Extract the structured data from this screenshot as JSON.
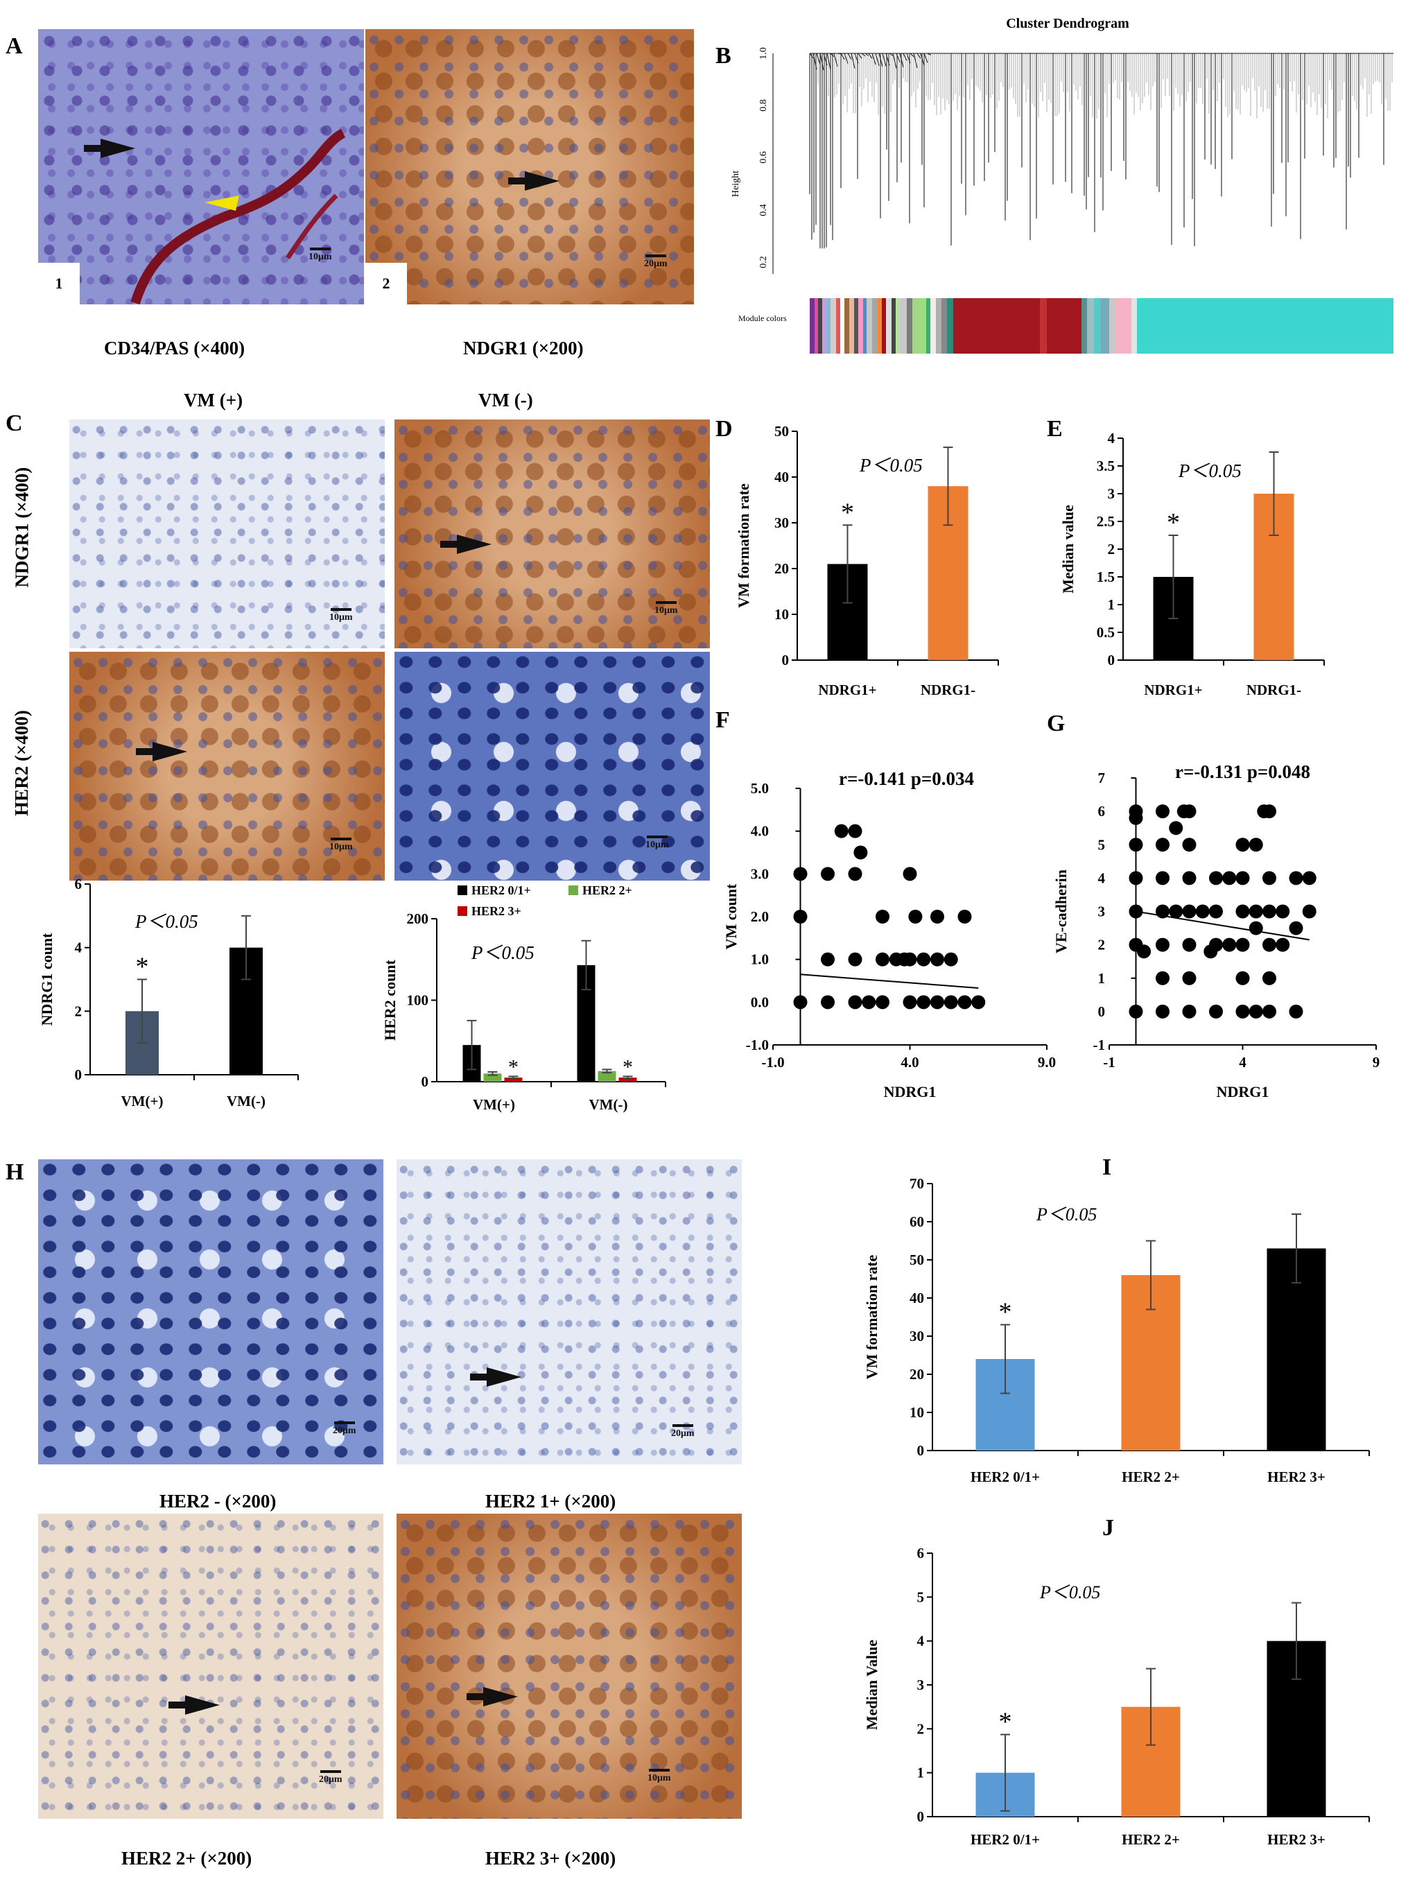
{
  "panels": {
    "A": {
      "label": "A",
      "captions": [
        "CD34/PAS (×400)",
        "NDGR1 (×200)"
      ],
      "num1": "1",
      "num2": "2",
      "scale1": "10μm",
      "scale2": "20μm"
    },
    "B": {
      "label": "B",
      "title": "Cluster Dendrogram",
      "ylabel": "Height",
      "yticks": [
        "1.0",
        "0.8",
        "0.6",
        "0.4",
        "0.2"
      ],
      "module_label": "Module colors"
    },
    "C": {
      "label": "C",
      "col_headers": [
        "VM (+)",
        "VM (-)"
      ],
      "row_labels": [
        "NDGR1 (×400)",
        "HER2 (×400)"
      ],
      "scale": "10μm"
    },
    "D": {
      "label": "D"
    },
    "E": {
      "label": "E"
    },
    "F": {
      "label": "F"
    },
    "G": {
      "label": "G"
    },
    "H": {
      "label": "H",
      "captions": [
        "HER2 - (×200)",
        "HER2 1+ (×200)",
        "HER2 2+ (×200)",
        "HER2 3+ (×200)"
      ],
      "scale": "20μm",
      "scale_3plus": "10μm"
    },
    "I": {
      "label": "I"
    },
    "J": {
      "label": "J"
    }
  },
  "chart_data": [
    {
      "id": "D",
      "type": "bar",
      "categories": [
        "NDRG1+",
        "NDRG1-"
      ],
      "values": [
        21,
        38
      ],
      "errors": [
        8.5,
        8.5
      ],
      "colors": [
        "#000000",
        "#ed7d31"
      ],
      "ylabel": "VM formation rate",
      "ylim": [
        0,
        50
      ],
      "yticks": [
        0,
        10,
        20,
        30,
        40,
        50
      ],
      "annotation": "P＜0.05",
      "star": "*"
    },
    {
      "id": "E",
      "type": "bar",
      "categories": [
        "NDRG1+",
        "NDRG1-"
      ],
      "values": [
        1.5,
        3.0
      ],
      "errors": [
        0.75,
        0.75
      ],
      "colors": [
        "#000000",
        "#ed7d31"
      ],
      "ylabel": "Median value",
      "ylim": [
        0,
        4
      ],
      "yticks": [
        0,
        0.5,
        1,
        1.5,
        2,
        2.5,
        3,
        3.5,
        4
      ],
      "annotation": "P＜0.05",
      "star": "*"
    },
    {
      "id": "C-left",
      "type": "bar",
      "categories": [
        "VM(+)",
        "VM(-)"
      ],
      "values": [
        2,
        4
      ],
      "errors": [
        1,
        1
      ],
      "colors": [
        "#44546a",
        "#000000"
      ],
      "ylabel": "NDRG1 count",
      "ylim": [
        0,
        6
      ],
      "yticks": [
        0,
        2,
        4,
        6
      ],
      "annotation": "P＜0.05",
      "star": "*"
    },
    {
      "id": "C-right",
      "type": "bar",
      "categories": [
        "VM(+)",
        "VM(-)"
      ],
      "series": [
        {
          "name": "HER2 0/1+",
          "color": "#000000",
          "values": [
            45,
            143
          ],
          "errors": [
            30,
            30
          ]
        },
        {
          "name": "HER2 2+",
          "color": "#70ad47",
          "values": [
            10,
            13
          ],
          "errors": [
            2,
            2
          ]
        },
        {
          "name": "HER2 3+",
          "color": "#c00000",
          "values": [
            5,
            5
          ],
          "errors": [
            1.5,
            1.5
          ]
        }
      ],
      "ylabel": "HER2 count",
      "ylim": [
        0,
        200
      ],
      "yticks": [
        0,
        100,
        200
      ],
      "annotation": "P＜0.05",
      "star": "*"
    },
    {
      "id": "F",
      "type": "scatter",
      "xlabel": "NDRG1",
      "ylabel": "VM count",
      "xlim": [
        -1,
        9
      ],
      "ylim": [
        -1,
        5
      ],
      "xticks": [
        "-1.0",
        "4.0",
        "9.0"
      ],
      "yticks": [
        "-1.0",
        "0.0",
        "1.0",
        "2.0",
        "3.0",
        "4.0",
        "5.0"
      ],
      "annotation": "r=-0.141  p=0.034",
      "trendline": [
        [
          0,
          0.65
        ],
        [
          6.5,
          0.33
        ]
      ],
      "points": [
        [
          0,
          0
        ],
        [
          0,
          2
        ],
        [
          0,
          3
        ],
        [
          1,
          0
        ],
        [
          1,
          1
        ],
        [
          1,
          3
        ],
        [
          1.5,
          4
        ],
        [
          2,
          4
        ],
        [
          2,
          0
        ],
        [
          2,
          1
        ],
        [
          2.2,
          3.5
        ],
        [
          2,
          3
        ],
        [
          2.5,
          0
        ],
        [
          3,
          0
        ],
        [
          3,
          1
        ],
        [
          3,
          2
        ],
        [
          3.5,
          1
        ],
        [
          4,
          0
        ],
        [
          4,
          1
        ],
        [
          4,
          3
        ],
        [
          4.5,
          0
        ],
        [
          4.5,
          1
        ],
        [
          5,
          0
        ],
        [
          5,
          1
        ],
        [
          5,
          2
        ],
        [
          5.5,
          0
        ],
        [
          5.5,
          1
        ],
        [
          6,
          0
        ],
        [
          6,
          2
        ],
        [
          6.5,
          0
        ],
        [
          3.8,
          1
        ],
        [
          4.2,
          2
        ]
      ]
    },
    {
      "id": "G",
      "type": "scatter",
      "xlabel": "NDRG1",
      "ylabel": "VE-cadherin",
      "xlim": [
        -1,
        9
      ],
      "ylim": [
        -1,
        7
      ],
      "xticks": [
        "-1",
        "4",
        "9"
      ],
      "yticks": [
        "-1",
        "0",
        "1",
        "2",
        "3",
        "4",
        "5",
        "6",
        "7"
      ],
      "annotation": "r=-0.131  p=0.048",
      "trendline": [
        [
          0,
          3.0
        ],
        [
          6.5,
          2.15
        ]
      ],
      "points": [
        [
          0,
          0
        ],
        [
          0,
          2
        ],
        [
          0,
          3
        ],
        [
          0,
          4
        ],
        [
          0,
          5
        ],
        [
          0,
          6
        ],
        [
          0,
          5.8
        ],
        [
          1,
          0
        ],
        [
          1,
          1
        ],
        [
          1,
          2
        ],
        [
          1,
          3
        ],
        [
          1,
          4
        ],
        [
          1,
          5
        ],
        [
          1,
          6
        ],
        [
          1.5,
          5.5
        ],
        [
          1.5,
          3
        ],
        [
          1.8,
          6
        ],
        [
          2,
          0
        ],
        [
          2,
          1
        ],
        [
          2,
          2
        ],
        [
          2,
          3
        ],
        [
          2,
          4
        ],
        [
          2,
          5
        ],
        [
          2,
          6
        ],
        [
          2.5,
          3
        ],
        [
          3,
          0
        ],
        [
          3,
          2
        ],
        [
          3,
          3
        ],
        [
          3,
          4
        ],
        [
          3.5,
          4
        ],
        [
          4,
          0
        ],
        [
          4,
          1
        ],
        [
          4,
          2
        ],
        [
          4,
          3
        ],
        [
          4,
          4
        ],
        [
          4,
          5
        ],
        [
          4.5,
          0
        ],
        [
          4.5,
          2.5
        ],
        [
          4.5,
          3
        ],
        [
          4.5,
          5
        ],
        [
          5,
          0
        ],
        [
          5,
          1
        ],
        [
          5,
          2
        ],
        [
          5,
          3
        ],
        [
          5,
          4
        ],
        [
          5,
          6
        ],
        [
          5.5,
          2
        ],
        [
          5.5,
          3
        ],
        [
          6,
          0
        ],
        [
          6,
          2.5
        ],
        [
          6,
          4
        ],
        [
          6.5,
          3
        ],
        [
          6.5,
          4
        ],
        [
          4.8,
          6
        ],
        [
          3.5,
          2
        ],
        [
          2.8,
          1.8
        ],
        [
          0.3,
          1.8
        ]
      ]
    },
    {
      "id": "I",
      "type": "bar",
      "categories": [
        "HER2 0/1+",
        "HER2 2+",
        "HER2 3+"
      ],
      "values": [
        24,
        46,
        53
      ],
      "errors": [
        9,
        9,
        9
      ],
      "colors": [
        "#5b9bd5",
        "#ed7d31",
        "#000000"
      ],
      "ylabel": "VM formation rate",
      "ylim": [
        0,
        70
      ],
      "yticks": [
        0,
        10,
        20,
        30,
        40,
        50,
        60,
        70
      ],
      "annotation": "P＜0.05",
      "star": "*"
    },
    {
      "id": "J",
      "type": "bar",
      "categories": [
        "HER2 0/1+",
        "HER2 2+",
        "HER2 3+"
      ],
      "values": [
        1,
        2.5,
        4
      ],
      "errors": [
        0.87,
        0.87,
        0.87
      ],
      "colors": [
        "#5b9bd5",
        "#ed7d31",
        "#000000"
      ],
      "ylabel": "Median Value",
      "ylim": [
        0,
        6
      ],
      "yticks": [
        0,
        1,
        2,
        3,
        4,
        5,
        6
      ],
      "annotation": "P＜0.05",
      "star": "*"
    }
  ]
}
